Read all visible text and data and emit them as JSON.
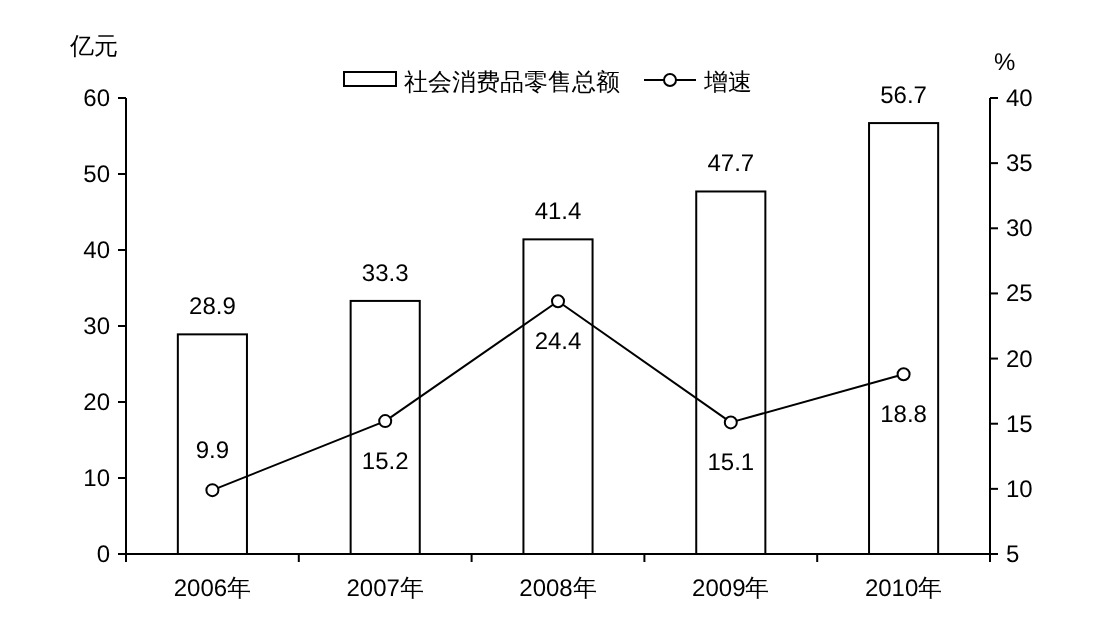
{
  "chart_data": {
    "type": "bar",
    "categories": [
      "2006年",
      "2007年",
      "2008年",
      "2009年",
      "2010年"
    ],
    "series": [
      {
        "name": "社会消费品零售总额",
        "color": "#ffffff",
        "values": [
          28.9,
          33.3,
          41.4,
          47.7,
          56.7
        ]
      },
      {
        "name": "增速",
        "type": "line",
        "axis": "y2",
        "color": "#000000",
        "values": [
          9.9,
          15.2,
          24.4,
          15.1,
          18.8
        ]
      }
    ],
    "ylabel": "亿元",
    "y2label": "%",
    "ylim": [
      0,
      60
    ],
    "yticks": [
      0,
      10,
      20,
      30,
      40,
      50,
      60
    ],
    "y2lim": [
      5,
      40
    ],
    "y2ticks": [
      5,
      10,
      15,
      20,
      25,
      30,
      35,
      40
    ],
    "data_labels": true,
    "legend": "top",
    "marker": "circle",
    "grid": false
  }
}
